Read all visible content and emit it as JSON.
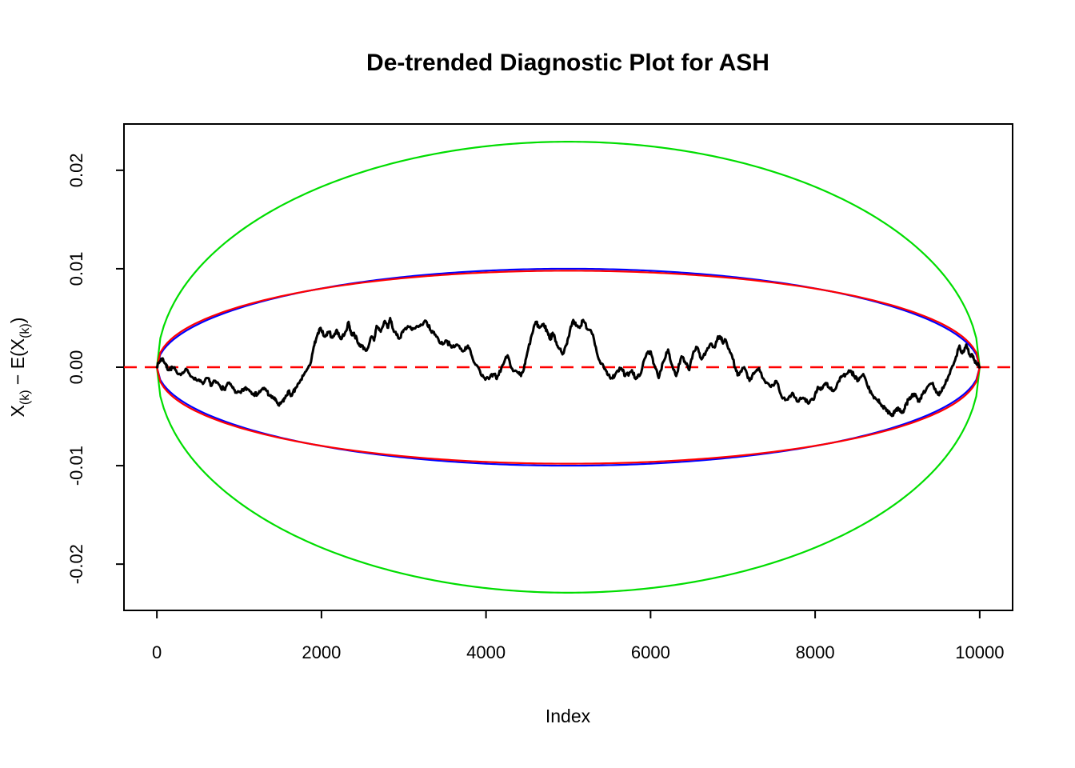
{
  "figure": {
    "background": "#ffffff"
  },
  "chart_data": {
    "type": "line",
    "title": "De-trended Diagnostic Plot for ASH",
    "xlabel": "Index",
    "ylabel": "X(k) − E(X(k))",
    "ylabel_parts": [
      {
        "text": "X",
        "sub": false
      },
      {
        "text": "(k)",
        "sub": true
      },
      {
        "text": " − E(X",
        "sub": false
      },
      {
        "text": "(k)",
        "sub": true
      },
      {
        "text": ")",
        "sub": false
      }
    ],
    "xlim": [
      -400,
      10400
    ],
    "ylim": [
      -0.0247,
      0.0247
    ],
    "x_ticks": [
      0,
      2000,
      4000,
      6000,
      8000,
      10000
    ],
    "x_tick_labels": [
      "0",
      "2000",
      "4000",
      "6000",
      "8000",
      "10000"
    ],
    "y_ticks": [
      0.02,
      0.01,
      0,
      -0.01,
      -0.02
    ],
    "y_tick_labels": [
      "0.02",
      "0.01",
      "0.00",
      "-0.01",
      "-0.02"
    ],
    "grid": false,
    "legend": null,
    "frame_color": "#000000",
    "zero_line": {
      "value": 0,
      "color": "#ff0000",
      "dash": [
        16,
        10
      ]
    },
    "envelopes": [
      {
        "name": "outer-green-ellipse",
        "color": "#00dd00",
        "center_amplitude": 0.0229,
        "shape_exponent": 0.5,
        "x_start": 0,
        "x_end": 10000
      },
      {
        "name": "middle-blue-ellipse",
        "color": "#0000ff",
        "center_amplitude": 0.01,
        "shape_exponent": 0.5,
        "x_start": 0,
        "x_end": 10000
      },
      {
        "name": "inner-red-ellipse",
        "color": "#ff0000",
        "center_amplitude": 0.0098,
        "shape_exponent": 0.46,
        "x_start": 0,
        "x_end": 10000
      }
    ],
    "series": [
      {
        "name": "detrended-order-statistics",
        "color": "#000000",
        "line_width": 3,
        "points": [
          [
            0,
            0.0
          ],
          [
            35,
            0.0006
          ],
          [
            70,
            0.0009
          ],
          [
            105,
            0.0003
          ],
          [
            140,
            -0.0003
          ],
          [
            190,
            0.0
          ],
          [
            240,
            -0.0005
          ],
          [
            300,
            -0.0007
          ],
          [
            360,
            -0.0002
          ],
          [
            430,
            -0.001
          ],
          [
            500,
            -0.0013
          ],
          [
            560,
            -0.0017
          ],
          [
            620,
            -0.0011
          ],
          [
            660,
            -0.0019
          ],
          [
            700,
            -0.0014
          ],
          [
            760,
            -0.0018
          ],
          [
            820,
            -0.0023
          ],
          [
            870,
            -0.0016
          ],
          [
            920,
            -0.0021
          ],
          [
            970,
            -0.0026
          ],
          [
            1020,
            -0.0026
          ],
          [
            1070,
            -0.0021
          ],
          [
            1120,
            -0.0023
          ],
          [
            1170,
            -0.0027
          ],
          [
            1220,
            -0.0028
          ],
          [
            1270,
            -0.0023
          ],
          [
            1320,
            -0.0022
          ],
          [
            1370,
            -0.0029
          ],
          [
            1410,
            -0.0031
          ],
          [
            1450,
            -0.0034
          ],
          [
            1485,
            -0.0039
          ],
          [
            1520,
            -0.0035
          ],
          [
            1560,
            -0.0031
          ],
          [
            1600,
            -0.0024
          ],
          [
            1640,
            -0.0029
          ],
          [
            1690,
            -0.0021
          ],
          [
            1730,
            -0.0016
          ],
          [
            1790,
            -0.0007
          ],
          [
            1860,
            0.0002
          ],
          [
            1900,
            0.0018
          ],
          [
            1940,
            0.003
          ],
          [
            1990,
            0.004
          ],
          [
            2040,
            0.0031
          ],
          [
            2090,
            0.0036
          ],
          [
            2135,
            0.003
          ],
          [
            2185,
            0.0038
          ],
          [
            2230,
            0.0029
          ],
          [
            2280,
            0.0033
          ],
          [
            2330,
            0.0046
          ],
          [
            2365,
            0.0033
          ],
          [
            2395,
            0.0035
          ],
          [
            2445,
            0.0024
          ],
          [
            2490,
            0.0022
          ],
          [
            2550,
            0.0017
          ],
          [
            2605,
            0.0031
          ],
          [
            2640,
            0.0027
          ],
          [
            2670,
            0.0042
          ],
          [
            2720,
            0.0036
          ],
          [
            2770,
            0.0047
          ],
          [
            2810,
            0.004
          ],
          [
            2835,
            0.005
          ],
          [
            2880,
            0.0036
          ],
          [
            2945,
            0.0029
          ],
          [
            3000,
            0.0038
          ],
          [
            3060,
            0.0041
          ],
          [
            3120,
            0.0039
          ],
          [
            3180,
            0.0041
          ],
          [
            3230,
            0.0043
          ],
          [
            3270,
            0.0047
          ],
          [
            3330,
            0.0037
          ],
          [
            3385,
            0.0033
          ],
          [
            3450,
            0.0024
          ],
          [
            3520,
            0.0027
          ],
          [
            3580,
            0.002
          ],
          [
            3650,
            0.0023
          ],
          [
            3720,
            0.0016
          ],
          [
            3780,
            0.0022
          ],
          [
            3840,
            0.0008
          ],
          [
            3905,
            0.0
          ],
          [
            3970,
            -0.001
          ],
          [
            4035,
            -0.0012
          ],
          [
            4100,
            -0.0007
          ],
          [
            4130,
            -0.0012
          ],
          [
            4200,
            0.0002
          ],
          [
            4263,
            0.0012
          ],
          [
            4330,
            -0.0004
          ],
          [
            4390,
            -0.0006
          ],
          [
            4425,
            -0.0009
          ],
          [
            4460,
            -0.0002
          ],
          [
            4490,
            0.001
          ],
          [
            4556,
            0.0033
          ],
          [
            4604,
            0.0046
          ],
          [
            4650,
            0.004
          ],
          [
            4700,
            0.0044
          ],
          [
            4745,
            0.0036
          ],
          [
            4783,
            0.0028
          ],
          [
            4810,
            0.0035
          ],
          [
            4850,
            0.0026
          ],
          [
            4880,
            0.002
          ],
          [
            4930,
            0.0013
          ],
          [
            4970,
            0.0022
          ],
          [
            5000,
            0.003
          ],
          [
            5060,
            0.0048
          ],
          [
            5100,
            0.0042
          ],
          [
            5140,
            0.004
          ],
          [
            5180,
            0.0048
          ],
          [
            5240,
            0.0038
          ],
          [
            5300,
            0.0033
          ],
          [
            5370,
            0.0008
          ],
          [
            5440,
            -0.0002
          ],
          [
            5480,
            -0.0008
          ],
          [
            5530,
            -0.0011
          ],
          [
            5580,
            -0.0006
          ],
          [
            5645,
            -0.0001
          ],
          [
            5690,
            -0.0009
          ],
          [
            5774,
            -0.0003
          ],
          [
            5820,
            -0.0012
          ],
          [
            5872,
            -0.0008
          ],
          [
            5953,
            0.0014
          ],
          [
            6002,
            0.0016
          ],
          [
            6050,
            0.0001
          ],
          [
            6099,
            -0.0011
          ],
          [
            6150,
            0.0005
          ],
          [
            6213,
            0.0018
          ],
          [
            6262,
            0.0002
          ],
          [
            6311,
            -0.0009
          ],
          [
            6376,
            0.0011
          ],
          [
            6424,
            0.0004
          ],
          [
            6470,
            -0.0003
          ],
          [
            6522,
            0.0016
          ],
          [
            6570,
            0.002
          ],
          [
            6619,
            0.0008
          ],
          [
            6684,
            0.0017
          ],
          [
            6733,
            0.0024
          ],
          [
            6780,
            0.002
          ],
          [
            6814,
            0.003
          ],
          [
            6847,
            0.0031
          ],
          [
            6880,
            0.0024
          ],
          [
            6912,
            0.0028
          ],
          [
            6977,
            0.0014
          ],
          [
            7041,
            -0.0004
          ],
          [
            7073,
            -0.0008
          ],
          [
            7138,
            0.0
          ],
          [
            7203,
            -0.0014
          ],
          [
            7268,
            -0.0005
          ],
          [
            7317,
            -0.0001
          ],
          [
            7398,
            -0.0016
          ],
          [
            7463,
            -0.002
          ],
          [
            7528,
            -0.0014
          ],
          [
            7593,
            -0.003
          ],
          [
            7658,
            -0.0033
          ],
          [
            7723,
            -0.0026
          ],
          [
            7788,
            -0.0035
          ],
          [
            7853,
            -0.0031
          ],
          [
            7918,
            -0.0037
          ],
          [
            7983,
            -0.0033
          ],
          [
            8032,
            -0.002
          ],
          [
            8085,
            -0.0022
          ],
          [
            8130,
            -0.0016
          ],
          [
            8180,
            -0.0022
          ],
          [
            8227,
            -0.0024
          ],
          [
            8280,
            -0.0015
          ],
          [
            8325,
            -0.0009
          ],
          [
            8380,
            -0.0007
          ],
          [
            8439,
            -0.0004
          ],
          [
            8480,
            -0.001
          ],
          [
            8520,
            -0.0014
          ],
          [
            8585,
            -0.0007
          ],
          [
            8640,
            -0.002
          ],
          [
            8682,
            -0.0026
          ],
          [
            8748,
            -0.0033
          ],
          [
            8800,
            -0.0038
          ],
          [
            8845,
            -0.0041
          ],
          [
            8910,
            -0.0047
          ],
          [
            8943,
            -0.0049
          ],
          [
            8975,
            -0.0044
          ],
          [
            9008,
            -0.0041
          ],
          [
            9040,
            -0.0045
          ],
          [
            9070,
            -0.0046
          ],
          [
            9100,
            -0.0038
          ],
          [
            9137,
            -0.0033
          ],
          [
            9170,
            -0.003
          ],
          [
            9202,
            -0.0027
          ],
          [
            9235,
            -0.0031
          ],
          [
            9267,
            -0.0035
          ],
          [
            9300,
            -0.0028
          ],
          [
            9364,
            -0.002
          ],
          [
            9430,
            -0.0016
          ],
          [
            9460,
            -0.0022
          ],
          [
            9495,
            -0.0028
          ],
          [
            9530,
            -0.0025
          ],
          [
            9560,
            -0.0021
          ],
          [
            9625,
            -0.0008
          ],
          [
            9690,
            0.0005
          ],
          [
            9755,
            0.0022
          ],
          [
            9787,
            0.0014
          ],
          [
            9836,
            0.0023
          ],
          [
            9885,
            0.0011
          ],
          [
            9910,
            0.0013
          ],
          [
            9934,
            0.0007
          ],
          [
            9960,
            0.0004
          ],
          [
            10000,
            0.0
          ]
        ]
      }
    ],
    "texture": {
      "jitter_amplitude": 0.00026,
      "substeps": 6,
      "seed": 7
    }
  }
}
